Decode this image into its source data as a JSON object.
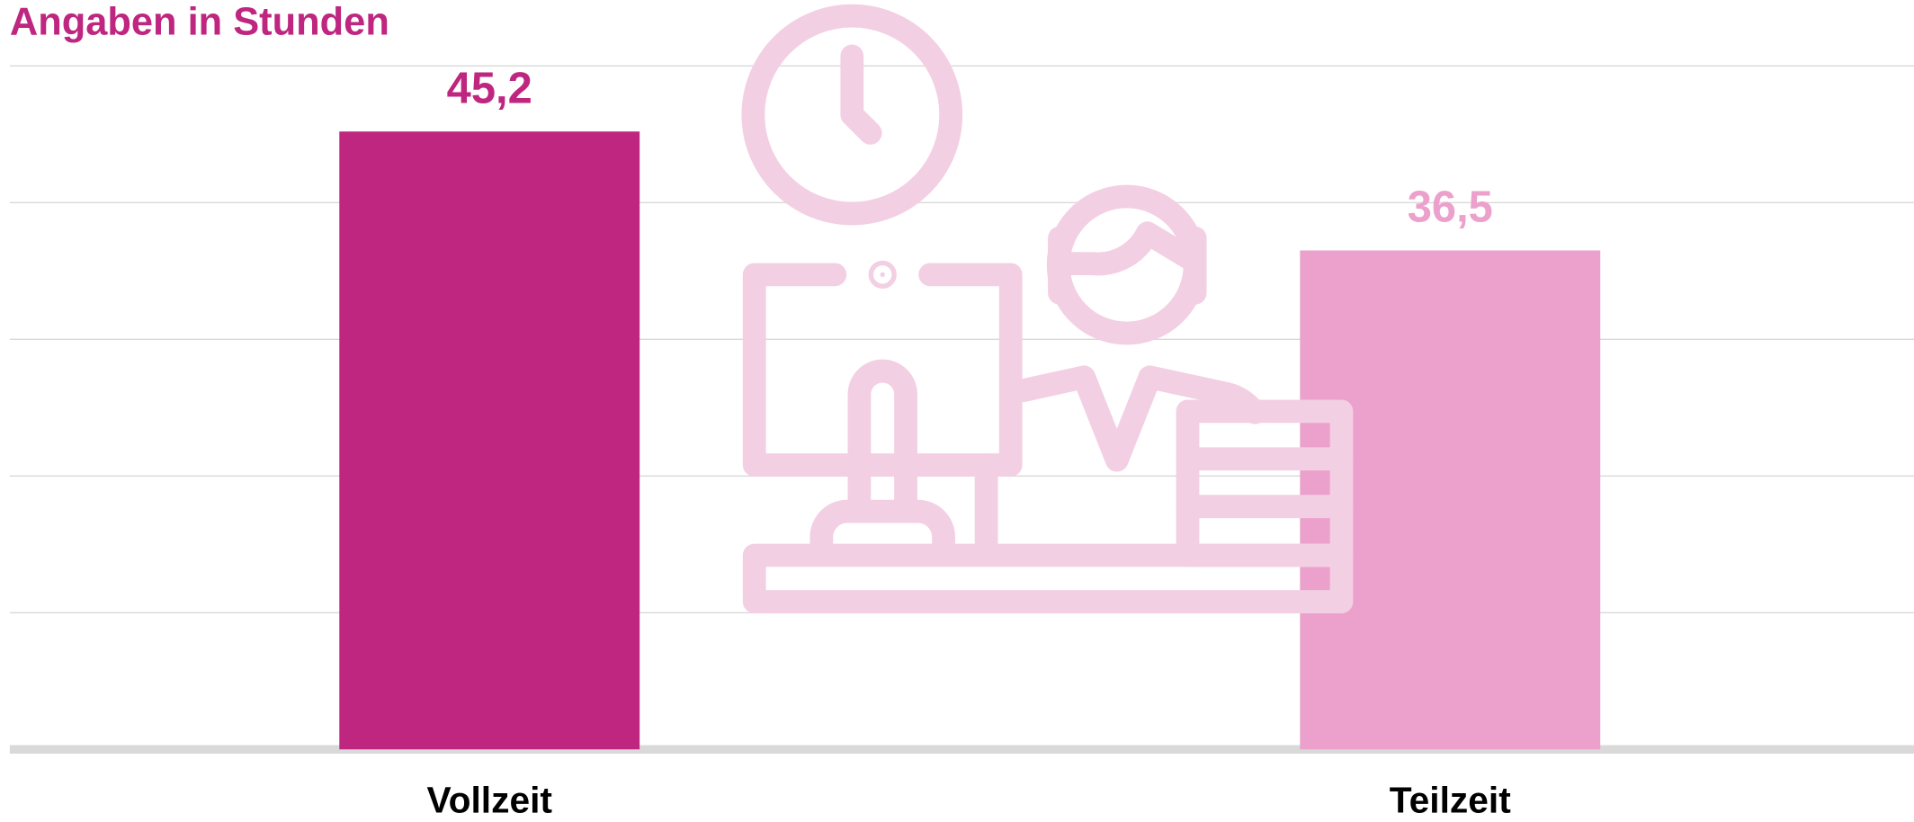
{
  "chart_data": {
    "type": "bar",
    "title": "Angaben in Stunden",
    "categories": [
      "Vollzeit",
      "Teilzeit"
    ],
    "values": [
      45.2,
      36.5
    ],
    "value_labels": [
      "45,2",
      "36,5"
    ],
    "colors": [
      "#be2680",
      "#eba1cc"
    ],
    "ylim": [
      0,
      50
    ],
    "yticks": [
      0,
      10,
      20,
      30,
      40,
      50
    ],
    "grid": true
  }
}
